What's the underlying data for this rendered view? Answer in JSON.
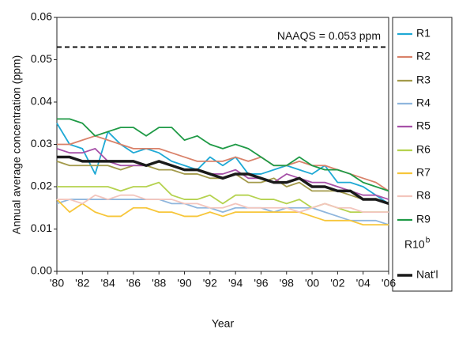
{
  "chart_data": {
    "type": "line",
    "y_label": "Annual average concentration (ppm)",
    "x_label": "Year",
    "reference_line": {
      "value": 0.053,
      "label": "NAAQS = 0.053 ppm"
    },
    "x": [
      1980,
      1981,
      1982,
      1983,
      1984,
      1985,
      1986,
      1987,
      1988,
      1989,
      1990,
      1991,
      1992,
      1993,
      1994,
      1995,
      1996,
      1997,
      1998,
      1999,
      2000,
      2001,
      2002,
      2003,
      2004,
      2005,
      2006
    ],
    "xlim": [
      1980,
      2006
    ],
    "xticks": [
      {
        "value": 1980,
        "label": "'80"
      },
      {
        "value": 1982,
        "label": "'82"
      },
      {
        "value": 1984,
        "label": "'84"
      },
      {
        "value": 1986,
        "label": "'86"
      },
      {
        "value": 1988,
        "label": "'88"
      },
      {
        "value": 1990,
        "label": "'90"
      },
      {
        "value": 1992,
        "label": "'92"
      },
      {
        "value": 1994,
        "label": "'94"
      },
      {
        "value": 1996,
        "label": "'96"
      },
      {
        "value": 1998,
        "label": "'98"
      },
      {
        "value": 2000,
        "label": "'00"
      },
      {
        "value": 2002,
        "label": "'02"
      },
      {
        "value": 2004,
        "label": "'04"
      },
      {
        "value": 2006,
        "label": "'06"
      }
    ],
    "ylim": [
      0,
      0.06
    ],
    "yticks": [
      {
        "value": 0,
        "label": "0.00"
      },
      0.01,
      0.02,
      0.03,
      0.04,
      0.05,
      0.06
    ],
    "legend": "right",
    "series": [
      {
        "name": "R1",
        "color": "#1fa9d5",
        "values": [
          0.035,
          0.03,
          0.029,
          0.023,
          0.033,
          0.03,
          0.028,
          0.029,
          0.028,
          0.026,
          0.025,
          0.024,
          0.027,
          0.025,
          0.027,
          0.023,
          0.023,
          0.024,
          0.025,
          0.024,
          0.023,
          0.025,
          0.021,
          0.021,
          0.02,
          0.018,
          0.016
        ]
      },
      {
        "name": "R2",
        "color": "#d9826a",
        "values": [
          0.03,
          0.03,
          0.031,
          0.032,
          0.031,
          0.03,
          0.029,
          0.029,
          0.029,
          0.028,
          0.027,
          0.026,
          0.026,
          0.026,
          0.027,
          0.026,
          0.027,
          0.025,
          0.025,
          0.026,
          0.025,
          0.025,
          0.024,
          0.023,
          0.022,
          0.021,
          0.019
        ]
      },
      {
        "name": "R3",
        "color": "#a39a4a",
        "values": [
          0.026,
          0.025,
          0.025,
          0.025,
          0.025,
          0.024,
          0.025,
          0.025,
          0.024,
          0.024,
          0.023,
          0.023,
          0.022,
          0.022,
          0.023,
          0.021,
          0.021,
          0.022,
          0.02,
          0.021,
          0.019,
          0.019,
          0.019,
          0.018,
          0.017,
          0.017,
          0.016
        ]
      },
      {
        "name": "R4",
        "color": "#8fb6dd",
        "values": [
          0.016,
          0.017,
          0.017,
          0.017,
          0.017,
          0.017,
          0.017,
          0.017,
          0.017,
          0.016,
          0.016,
          0.015,
          0.015,
          0.014,
          0.015,
          0.015,
          0.015,
          0.014,
          0.015,
          0.015,
          0.015,
          0.014,
          0.013,
          0.012,
          0.012,
          0.012,
          0.011
        ]
      },
      {
        "name": "R5",
        "color": "#a651a8",
        "values": [
          0.029,
          0.028,
          0.028,
          0.029,
          0.026,
          0.025,
          0.025,
          0.025,
          0.026,
          0.025,
          0.024,
          0.024,
          0.023,
          0.023,
          0.024,
          0.022,
          0.022,
          0.021,
          0.023,
          0.022,
          0.021,
          0.021,
          0.02,
          0.019,
          0.018,
          0.018,
          0.017
        ]
      },
      {
        "name": "R6",
        "color": "#b5d24f",
        "values": [
          0.02,
          0.02,
          0.02,
          0.02,
          0.02,
          0.019,
          0.02,
          0.02,
          0.021,
          0.018,
          0.017,
          0.017,
          0.018,
          0.016,
          0.018,
          0.018,
          0.017,
          0.017,
          0.016,
          0.017,
          0.015,
          0.016,
          0.015,
          0.014,
          0.014,
          0.014,
          0.014
        ]
      },
      {
        "name": "R7",
        "color": "#f7c63a",
        "values": [
          0.017,
          0.014,
          0.016,
          0.014,
          0.013,
          0.013,
          0.015,
          0.015,
          0.014,
          0.014,
          0.013,
          0.013,
          0.014,
          0.013,
          0.014,
          0.014,
          0.014,
          0.014,
          0.014,
          0.014,
          0.013,
          0.012,
          0.012,
          0.012,
          0.011,
          0.011,
          0.011
        ]
      },
      {
        "name": "R8",
        "color": "#f3c5bd",
        "values": [
          0.017,
          0.017,
          0.016,
          0.018,
          0.017,
          0.018,
          0.018,
          0.017,
          0.017,
          0.017,
          0.016,
          0.016,
          0.015,
          0.015,
          0.016,
          0.015,
          0.015,
          0.015,
          0.015,
          0.014,
          0.015,
          0.016,
          0.015,
          0.015,
          0.014,
          0.014,
          0.014
        ]
      },
      {
        "name": "R9",
        "color": "#1f9a46",
        "values": [
          0.036,
          0.036,
          0.035,
          0.032,
          0.033,
          0.034,
          0.034,
          0.032,
          0.034,
          0.034,
          0.031,
          0.032,
          0.03,
          0.029,
          0.03,
          0.029,
          0.027,
          0.025,
          0.025,
          0.027,
          0.025,
          0.024,
          0.024,
          0.023,
          0.021,
          0.02,
          0.019
        ]
      },
      {
        "name": "R10",
        "name_superscript": "b",
        "values": [
          null,
          null,
          null,
          null,
          null,
          null,
          null,
          null,
          null,
          null,
          null,
          null,
          null,
          null,
          null,
          null,
          null,
          null,
          null,
          null,
          null,
          null,
          null,
          null,
          null,
          null,
          null
        ]
      },
      {
        "name": "Nat'l",
        "color": "#1a1a1a",
        "width": 3.5,
        "values": [
          0.027,
          0.027,
          0.026,
          0.026,
          0.026,
          0.026,
          0.026,
          0.025,
          0.026,
          0.025,
          0.024,
          0.024,
          0.023,
          0.022,
          0.023,
          0.023,
          0.022,
          0.021,
          0.021,
          0.022,
          0.02,
          0.02,
          0.019,
          0.019,
          0.017,
          0.017,
          0.016
        ]
      }
    ]
  }
}
